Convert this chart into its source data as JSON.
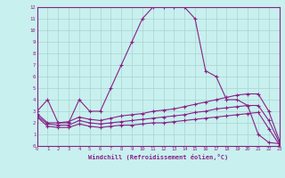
{
  "xlabel": "Windchill (Refroidissement éolien,°C)",
  "background_color": "#c8f0ee",
  "grid_color": "#a8d4d0",
  "line_color": "#882288",
  "xlim": [
    0,
    23
  ],
  "ylim": [
    0,
    12
  ],
  "xticks": [
    0,
    1,
    2,
    3,
    4,
    5,
    6,
    7,
    8,
    9,
    10,
    11,
    12,
    13,
    14,
    15,
    16,
    17,
    18,
    19,
    20,
    21,
    22,
    23
  ],
  "yticks": [
    0,
    1,
    2,
    3,
    4,
    5,
    6,
    7,
    8,
    9,
    10,
    11,
    12
  ],
  "line1_x": [
    0,
    1,
    2,
    3,
    4,
    5,
    6,
    7,
    8,
    9,
    10,
    11,
    12,
    13,
    14,
    15,
    16,
    17,
    18,
    19,
    20,
    21,
    22,
    23
  ],
  "line1_y": [
    3,
    4,
    2,
    2,
    4,
    3,
    3,
    5,
    7,
    9,
    11,
    12,
    12,
    12,
    12,
    11,
    6.5,
    6,
    4,
    4,
    3.5,
    1,
    0.3,
    0.2
  ],
  "line2_x": [
    0,
    1,
    2,
    3,
    4,
    5,
    6,
    7,
    8,
    9,
    10,
    11,
    12,
    13,
    14,
    15,
    16,
    17,
    18,
    19,
    20,
    21,
    22,
    23
  ],
  "line2_y": [
    2.8,
    2.0,
    2.0,
    2.1,
    2.5,
    2.3,
    2.2,
    2.4,
    2.6,
    2.7,
    2.8,
    3.0,
    3.1,
    3.2,
    3.4,
    3.6,
    3.8,
    4.0,
    4.2,
    4.4,
    4.5,
    4.5,
    3.0,
    0.5
  ],
  "line3_x": [
    0,
    1,
    2,
    3,
    4,
    5,
    6,
    7,
    8,
    9,
    10,
    11,
    12,
    13,
    14,
    15,
    16,
    17,
    18,
    19,
    20,
    21,
    22,
    23
  ],
  "line3_y": [
    2.6,
    1.9,
    1.8,
    1.8,
    2.2,
    2.0,
    1.9,
    2.0,
    2.1,
    2.2,
    2.3,
    2.4,
    2.5,
    2.6,
    2.7,
    2.9,
    3.0,
    3.2,
    3.3,
    3.4,
    3.5,
    3.5,
    2.2,
    0.3
  ],
  "line4_x": [
    0,
    1,
    2,
    3,
    4,
    5,
    6,
    7,
    8,
    9,
    10,
    11,
    12,
    13,
    14,
    15,
    16,
    17,
    18,
    19,
    20,
    21,
    22,
    23
  ],
  "line4_y": [
    2.5,
    1.7,
    1.6,
    1.6,
    1.9,
    1.7,
    1.6,
    1.7,
    1.8,
    1.8,
    1.9,
    2.0,
    2.0,
    2.1,
    2.2,
    2.3,
    2.4,
    2.5,
    2.6,
    2.7,
    2.8,
    2.9,
    1.5,
    0.1
  ]
}
